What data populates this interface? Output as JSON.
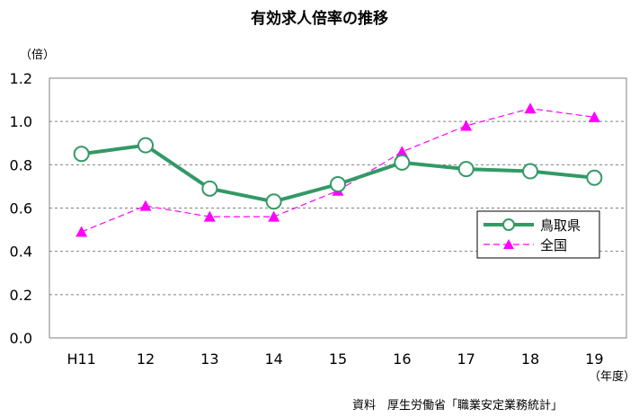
{
  "header": {
    "title": "有効求人倍率の推移",
    "y_unit": "（倍）",
    "x_unit": "（年度）",
    "source": "資料　厚生労働省「職業安定業務統計」"
  },
  "chart_data": {
    "type": "line",
    "title": "有効求人倍率の推移",
    "xlabel": "（年度）",
    "ylabel": "（倍）",
    "categories": [
      "H11",
      "12",
      "13",
      "14",
      "15",
      "16",
      "17",
      "18",
      "19"
    ],
    "ylim": [
      0.0,
      1.2
    ],
    "yticks": [
      "0.0",
      "0.2",
      "0.4",
      "0.6",
      "0.8",
      "1.0",
      "1.2"
    ],
    "grid": true,
    "legend_position": "right",
    "series": [
      {
        "name": "鳥取県",
        "values": [
          0.85,
          0.89,
          0.69,
          0.63,
          0.71,
          0.81,
          0.78,
          0.77,
          0.74
        ],
        "color": "#339966",
        "style": "solid",
        "marker": "circle"
      },
      {
        "name": "全国",
        "values": [
          0.49,
          0.61,
          0.56,
          0.56,
          0.68,
          0.86,
          0.98,
          1.06,
          1.02
        ],
        "color": "#ff00ff",
        "style": "dashed",
        "marker": "triangle"
      }
    ]
  }
}
